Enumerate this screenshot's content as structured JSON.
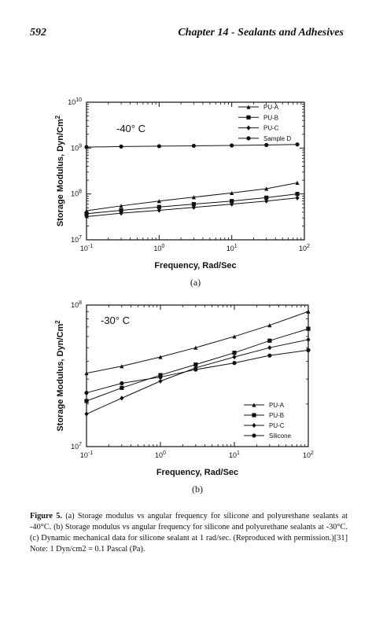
{
  "header": {
    "page_number": "592",
    "chapter_title": "Chapter 14 - Sealants and Adhesives"
  },
  "caption": {
    "figure_label": "Figure 5.",
    "text": "(a) Storage modulus vs angular frequency for silicone and polyurethane sealants at -40°C. (b) Storage modulus vs angular frequency for silicone and polyurethane sealants at -30°C. (c) Dynamic mechanical data for silicone sealant at 1 rad/sec. (Reproduced with permission.)[31] Note: 1 Dyn/cm2 = 0.1 Pascal (Pa)."
  },
  "chart_data": [
    {
      "type": "line",
      "panel_label": "(a)",
      "annotation": "-40° C",
      "xlabel": "Frequency, Rad/Sec",
      "ylabel": "Storage Modulus, Dyn/Cm2",
      "xscale": "log",
      "yscale": "log",
      "xlim": [
        0.1,
        100
      ],
      "ylim": [
        10000000,
        10000000000
      ],
      "x_ticks": [
        "10-1",
        "100",
        "101",
        "102"
      ],
      "y_ticks": [
        "107",
        "108",
        "109",
        "1010"
      ],
      "legend_position": "top-right",
      "series": [
        {
          "name": "PU-A",
          "marker": "triangle",
          "x": [
            0.1,
            0.3,
            1,
            3,
            10,
            30,
            80
          ],
          "y": [
            43000000,
            55000000,
            70000000,
            85000000,
            105000000,
            130000000,
            175000000
          ]
        },
        {
          "name": "PU-B",
          "marker": "square",
          "x": [
            0.1,
            0.3,
            1,
            3,
            10,
            30,
            80
          ],
          "y": [
            37000000,
            44000000,
            52000000,
            60000000,
            70000000,
            83000000,
            100000000
          ]
        },
        {
          "name": "PU-C",
          "marker": "diamond",
          "x": [
            0.1,
            0.3,
            1,
            3,
            10,
            30,
            80
          ],
          "y": [
            32000000,
            38000000,
            44000000,
            51000000,
            60000000,
            70000000,
            82000000
          ]
        },
        {
          "name": "Sample D",
          "marker": "circle",
          "x": [
            0.1,
            0.3,
            1,
            3,
            10,
            30,
            80
          ],
          "y": [
            1050000000,
            1080000000,
            1100000000,
            1120000000,
            1140000000,
            1170000000,
            1200000000
          ]
        }
      ]
    },
    {
      "type": "line",
      "panel_label": "(b)",
      "annotation": "-30° C",
      "xlabel": "Frequency, Rad/Sec",
      "ylabel": "Storage Modulus, Dyn/Cm2",
      "xscale": "log",
      "yscale": "log",
      "xlim": [
        0.1,
        100
      ],
      "ylim": [
        10000000,
        100000000
      ],
      "x_ticks": [
        "10-1",
        "100",
        "101",
        "102"
      ],
      "y_ticks": [
        "107",
        "108"
      ],
      "legend_position": "bottom-right",
      "series": [
        {
          "name": "PU-A",
          "marker": "triangle",
          "x": [
            0.1,
            0.3,
            1,
            3,
            10,
            30,
            100
          ],
          "y": [
            33000000,
            37000000,
            43000000,
            50000000,
            60000000,
            72000000,
            90000000
          ]
        },
        {
          "name": "PU-B",
          "marker": "square",
          "x": [
            0.1,
            0.3,
            1,
            3,
            10,
            30,
            100
          ],
          "y": [
            21000000,
            26000000,
            32000000,
            38000000,
            46000000,
            56000000,
            68000000
          ]
        },
        {
          "name": "PU-C",
          "marker": "diamond",
          "x": [
            0.1,
            0.3,
            1,
            3,
            10,
            30,
            100
          ],
          "y": [
            17000000,
            22000000,
            29000000,
            36000000,
            43000000,
            50000000,
            57000000
          ]
        },
        {
          "name": "Silicone",
          "marker": "circle",
          "x": [
            0.1,
            0.3,
            1,
            3,
            10,
            30,
            100
          ],
          "y": [
            24000000,
            28000000,
            31000000,
            35000000,
            39000000,
            44000000,
            48000000
          ]
        }
      ]
    }
  ]
}
